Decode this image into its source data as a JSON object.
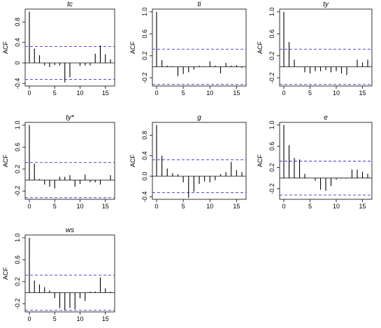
{
  "ylabel": "ACF",
  "colors": {
    "bar": "#000000",
    "ci": "#3333dd",
    "frame": "#000000"
  },
  "chart_data": [
    {
      "type": "bar",
      "title": "tc",
      "ylabel": "ACF",
      "ylim": [
        -0.45,
        1.05
      ],
      "yticks": [
        -0.4,
        0,
        0.4,
        0.8
      ],
      "yticklabels": [
        "-0.4",
        "0",
        "0.4",
        "0.8"
      ],
      "xticks": [
        0,
        5,
        10,
        15
      ],
      "xticklabels": [
        "0",
        "5",
        "10",
        "15"
      ],
      "xlim": [
        0,
        16
      ],
      "ci": 0.32,
      "grid": false,
      "lags": [
        0,
        1,
        2,
        3,
        4,
        5,
        6,
        7,
        8,
        9,
        10,
        11,
        12,
        13,
        14,
        15,
        16
      ],
      "values": [
        1.0,
        0.28,
        0.15,
        -0.05,
        -0.08,
        -0.04,
        -0.05,
        -0.38,
        -0.28,
        0.0,
        -0.06,
        -0.05,
        -0.05,
        0.18,
        0.34,
        0.17,
        0.07
      ]
    },
    {
      "type": "bar",
      "title": "ti",
      "ylabel": "ACF",
      "ylim": [
        -0.35,
        1.05
      ],
      "yticks": [
        -0.2,
        0.2,
        0.6,
        1.0
      ],
      "yticklabels": [
        "-0.2",
        "0.2",
        "0.6",
        "1.0"
      ],
      "xticks": [
        0,
        5,
        10,
        15
      ],
      "xticklabels": [
        "0",
        "5",
        "10",
        "15"
      ],
      "xlim": [
        0,
        16
      ],
      "ci": 0.32,
      "grid": false,
      "lags": [
        0,
        1,
        2,
        3,
        4,
        5,
        6,
        7,
        8,
        9,
        10,
        11,
        12,
        13,
        14,
        15,
        16
      ],
      "values": [
        1.0,
        0.12,
        0.02,
        0.01,
        -0.17,
        -0.13,
        -0.1,
        -0.05,
        0.02,
        0.01,
        0.1,
        0.02,
        -0.12,
        0.07,
        0.02,
        0.03,
        -0.02
      ]
    },
    {
      "type": "bar",
      "title": "ty",
      "ylabel": "ACF",
      "ylim": [
        -0.35,
        1.05
      ],
      "yticks": [
        -0.2,
        0.2,
        0.6,
        1.0
      ],
      "yticklabels": [
        "-0.2",
        "0.2",
        "0.6",
        "1.0"
      ],
      "xticks": [
        0,
        5,
        10,
        15
      ],
      "xticklabels": [
        "0",
        "5",
        "10",
        "15"
      ],
      "xlim": [
        0,
        16
      ],
      "ci": 0.32,
      "grid": false,
      "lags": [
        0,
        1,
        2,
        3,
        4,
        5,
        6,
        7,
        8,
        9,
        10,
        11,
        12,
        13,
        14,
        15,
        16
      ],
      "values": [
        1.0,
        0.45,
        0.13,
        0.0,
        -0.1,
        -0.12,
        -0.08,
        -0.08,
        -0.06,
        -0.1,
        -0.08,
        -0.12,
        -0.15,
        0.0,
        0.13,
        0.08,
        0.13
      ]
    },
    {
      "type": "bar",
      "title": "ty*",
      "ylabel": "ACF",
      "ylim": [
        -0.35,
        1.05
      ],
      "yticks": [
        -0.2,
        0.2,
        0.6,
        1.0
      ],
      "yticklabels": [
        "-0.2",
        "0.2",
        "0.6",
        "1.0"
      ],
      "xticks": [
        0,
        5,
        10,
        15
      ],
      "xticklabels": [
        "0",
        "5",
        "10",
        "15"
      ],
      "xlim": [
        0,
        16
      ],
      "ci": 0.32,
      "grid": false,
      "lags": [
        0,
        1,
        2,
        3,
        4,
        5,
        6,
        7,
        8,
        9,
        10,
        11,
        12,
        13,
        14,
        15,
        16
      ],
      "values": [
        1.0,
        0.3,
        0.02,
        -0.08,
        -0.12,
        -0.15,
        0.06,
        0.06,
        0.09,
        -0.12,
        -0.07,
        0.1,
        -0.04,
        -0.04,
        -0.08,
        0.0,
        0.09
      ]
    },
    {
      "type": "bar",
      "title": "g",
      "ylabel": "ACF",
      "ylim": [
        -0.45,
        1.05
      ],
      "yticks": [
        -0.4,
        0.0,
        0.4,
        0.8
      ],
      "yticklabels": [
        "-0.4",
        "0.0",
        "0.4",
        "0.8"
      ],
      "xticks": [
        0,
        5,
        10,
        15
      ],
      "xticklabels": [
        "0",
        "5",
        "10",
        "15"
      ],
      "xlim": [
        0,
        16
      ],
      "ci": 0.32,
      "grid": false,
      "lags": [
        0,
        1,
        2,
        3,
        4,
        5,
        6,
        7,
        8,
        9,
        10,
        11,
        12,
        13,
        14,
        15,
        16
      ],
      "values": [
        1.0,
        0.4,
        0.15,
        0.06,
        0.04,
        -0.12,
        -0.42,
        -0.3,
        -0.15,
        -0.1,
        -0.12,
        -0.08,
        0.04,
        0.08,
        0.28,
        0.12,
        0.08
      ]
    },
    {
      "type": "bar",
      "title": "e",
      "ylabel": "ACF",
      "ylim": [
        -0.4,
        1.05
      ],
      "yticks": [
        -0.2,
        0.2,
        0.6,
        1.0
      ],
      "yticklabels": [
        "-0.2",
        "0.2",
        "0.6",
        "1.0"
      ],
      "xticks": [
        0,
        5,
        10,
        15
      ],
      "xticklabels": [
        "0",
        "5",
        "10",
        "15"
      ],
      "xlim": [
        0,
        16
      ],
      "ci": 0.32,
      "grid": false,
      "lags": [
        0,
        1,
        2,
        3,
        4,
        5,
        6,
        7,
        8,
        9,
        10,
        11,
        12,
        13,
        14,
        15,
        16
      ],
      "values": [
        1.0,
        0.62,
        0.38,
        0.35,
        0.08,
        0.0,
        -0.05,
        -0.22,
        -0.24,
        -0.15,
        -0.03,
        -0.01,
        -0.01,
        0.16,
        0.16,
        0.12,
        0.08
      ]
    },
    {
      "type": "bar",
      "title": "ws",
      "ylabel": "ACF",
      "ylim": [
        -0.35,
        1.05
      ],
      "yticks": [
        -0.2,
        0.2,
        0.6,
        1.0
      ],
      "yticklabels": [
        "-0.2",
        "0.2",
        "0.6",
        "1.0"
      ],
      "xticks": [
        0,
        5,
        10,
        15
      ],
      "xticklabels": [
        "0",
        "5",
        "10",
        "15"
      ],
      "xlim": [
        0,
        16
      ],
      "ci": 0.32,
      "grid": false,
      "lags": [
        0,
        1,
        2,
        3,
        4,
        5,
        6,
        7,
        8,
        9,
        10,
        11,
        12,
        13,
        14,
        15,
        16
      ],
      "values": [
        1.0,
        0.22,
        0.15,
        0.1,
        0.04,
        -0.1,
        -0.28,
        -0.32,
        -0.28,
        -0.3,
        -0.1,
        -0.15,
        0.02,
        0.02,
        0.28,
        0.08,
        0.02
      ]
    }
  ]
}
